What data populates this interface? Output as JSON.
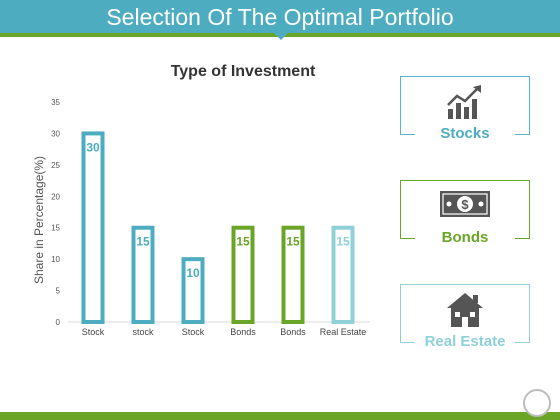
{
  "header": {
    "title": "Selection Of The Optimal Portfolio"
  },
  "colors": {
    "teal": "#4dacc0",
    "green": "#6aa527",
    "light_teal": "#8fd0d9"
  },
  "chart_data": {
    "type": "bar",
    "title": "Type of Investment",
    "ylabel": "Share in Percentage(%)",
    "xlabel": "",
    "categories": [
      "Stock",
      "stock",
      "Stock",
      "Bonds",
      "Bonds",
      "Real Estate"
    ],
    "values": [
      30,
      15,
      10,
      15,
      15,
      15
    ],
    "bar_colors": [
      "#4dacc0",
      "#4dacc0",
      "#4dacc0",
      "#6aa527",
      "#6aa527",
      "#8fd0d9"
    ],
    "ylim": [
      0,
      35
    ],
    "yticks": [
      0,
      5,
      10,
      15,
      20,
      25,
      30,
      35
    ],
    "grid": false
  },
  "cards": [
    {
      "label": "Stocks",
      "icon": "growth-chart-icon"
    },
    {
      "label": "Bonds",
      "icon": "dollar-bill-icon"
    },
    {
      "label": "Real Estate",
      "icon": "house-icon"
    }
  ]
}
